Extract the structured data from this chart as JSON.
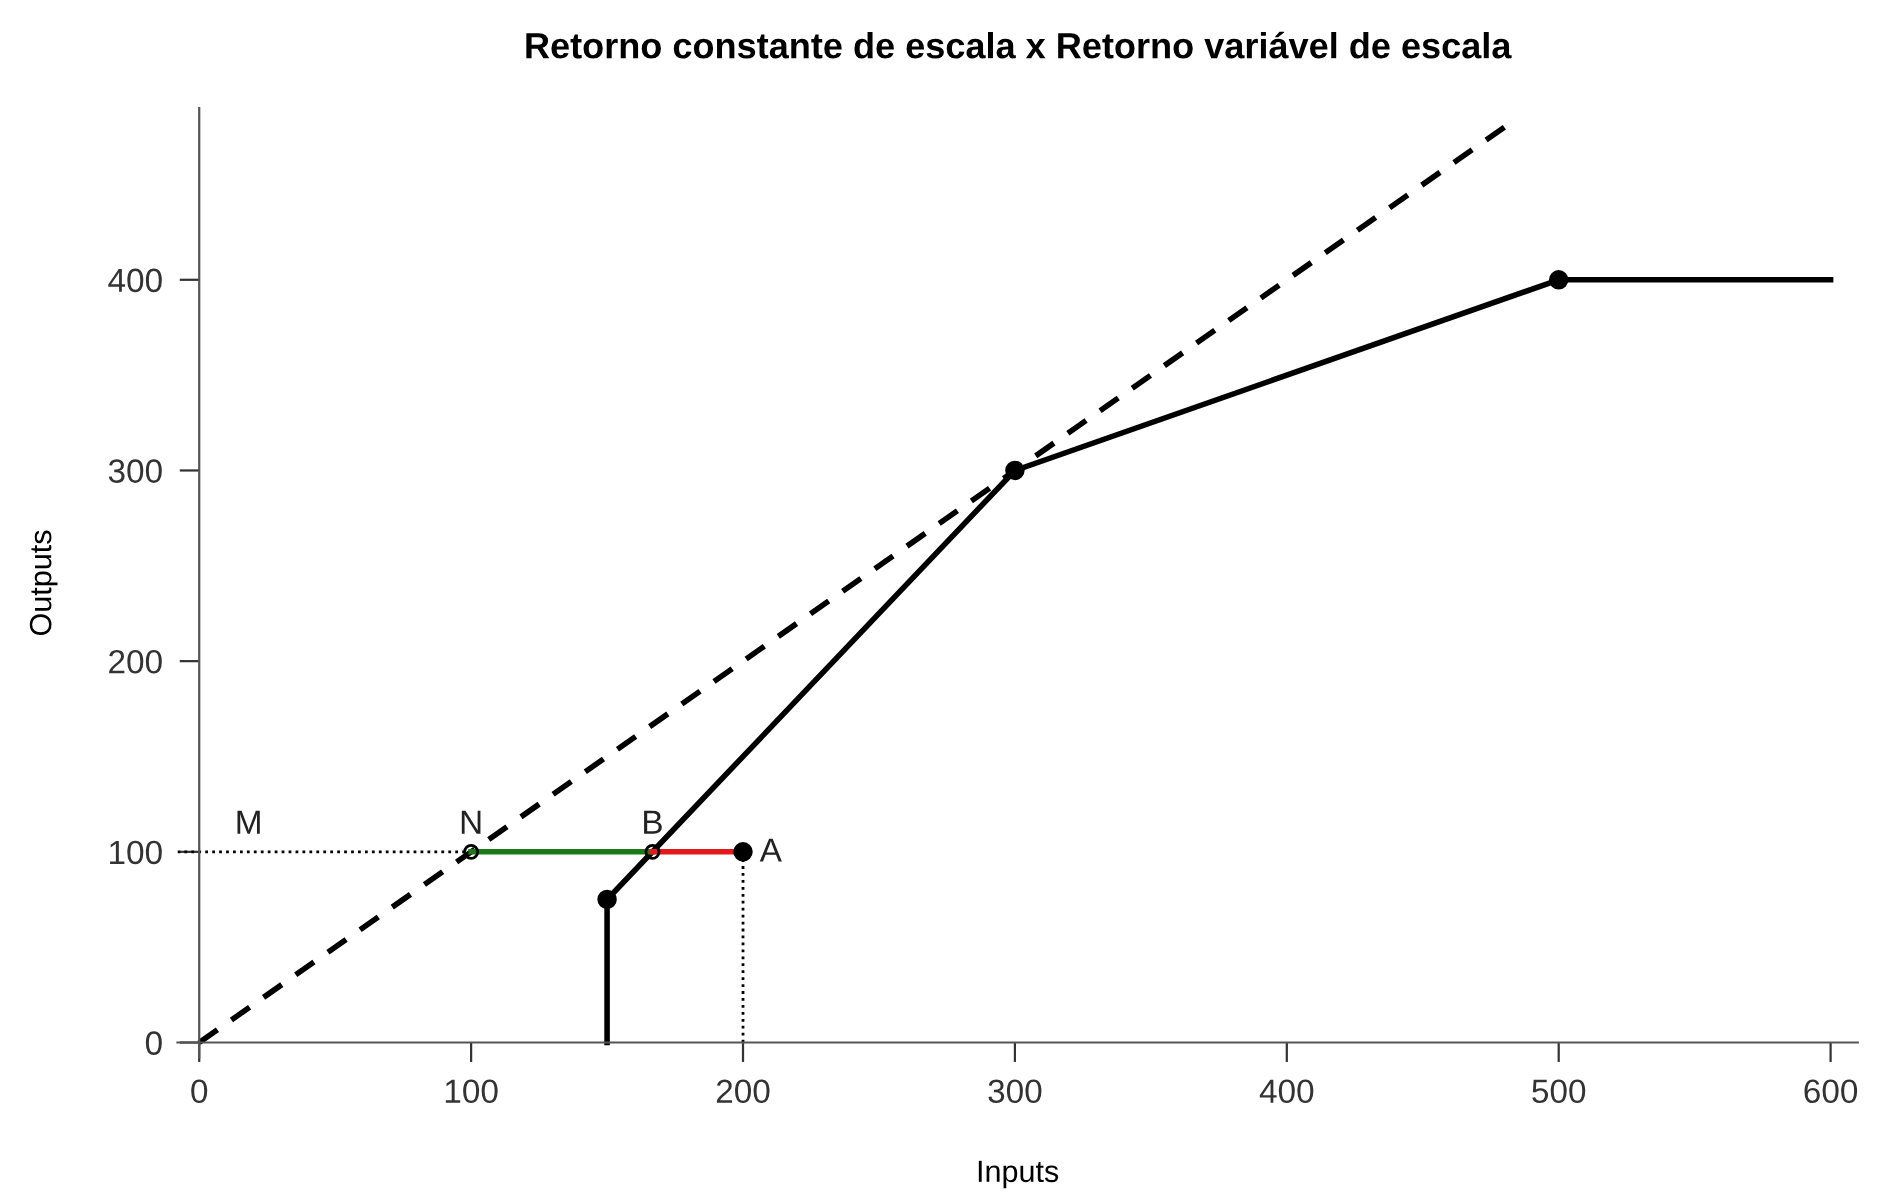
{
  "chart_data": {
    "type": "line",
    "title": "Retorno constante de escala x Retorno variável de escala",
    "xlabel": "Inputs",
    "ylabel": "Outputs",
    "xlim": [
      -8,
      610
    ],
    "ylim": [
      -8,
      490
    ],
    "xticks": [
      0,
      100,
      200,
      300,
      400,
      500,
      600
    ],
    "yticks": [
      0,
      100,
      200,
      300,
      400
    ],
    "grid": false,
    "legend": false,
    "series": [
      {
        "color": "#000000",
        "x": [
          0,
          480
        ],
        "values": [
          0,
          480
        ],
        "line_style": "dashed",
        "marker": "none"
      },
      {
        "color": "#000000",
        "x": [
          150,
          150,
          300,
          500,
          600
        ],
        "values": [
          0,
          75,
          300,
          400,
          400
        ],
        "line_style": "solid",
        "marker": "none"
      },
      {
        "type": "scatter",
        "color": "#000000",
        "x": [
          150,
          300,
          500,
          200
        ],
        "values": [
          75,
          300,
          400,
          100
        ],
        "marker": "circle"
      },
      {
        "color": "#000000",
        "x": [
          -8,
          100
        ],
        "values": [
          100,
          100
        ],
        "line_style": "dotted",
        "marker": "none"
      },
      {
        "color": "#000000",
        "x": [
          200,
          200
        ],
        "values": [
          0,
          100
        ],
        "line_style": "dotted",
        "marker": "none"
      },
      {
        "color": "#1a7a1a",
        "x": [
          100,
          166.7
        ],
        "values": [
          100,
          100
        ],
        "line_style": "solid",
        "marker": "none"
      },
      {
        "color": "#e31a1c",
        "x": [
          166.7,
          200
        ],
        "values": [
          100,
          100
        ],
        "line_style": "solid",
        "marker": "none"
      },
      {
        "type": "scatter",
        "color": "#000000",
        "x": [
          100,
          166.7
        ],
        "values": [
          100,
          100
        ],
        "marker": "open circle"
      }
    ],
    "annotations": [
      {
        "text": "M",
        "x": 10,
        "y": 100
      },
      {
        "text": "N",
        "x": 100,
        "y": 100
      },
      {
        "text": "B",
        "x": 166.7,
        "y": 100
      },
      {
        "text": "A",
        "x": 200,
        "y": 100
      }
    ]
  }
}
